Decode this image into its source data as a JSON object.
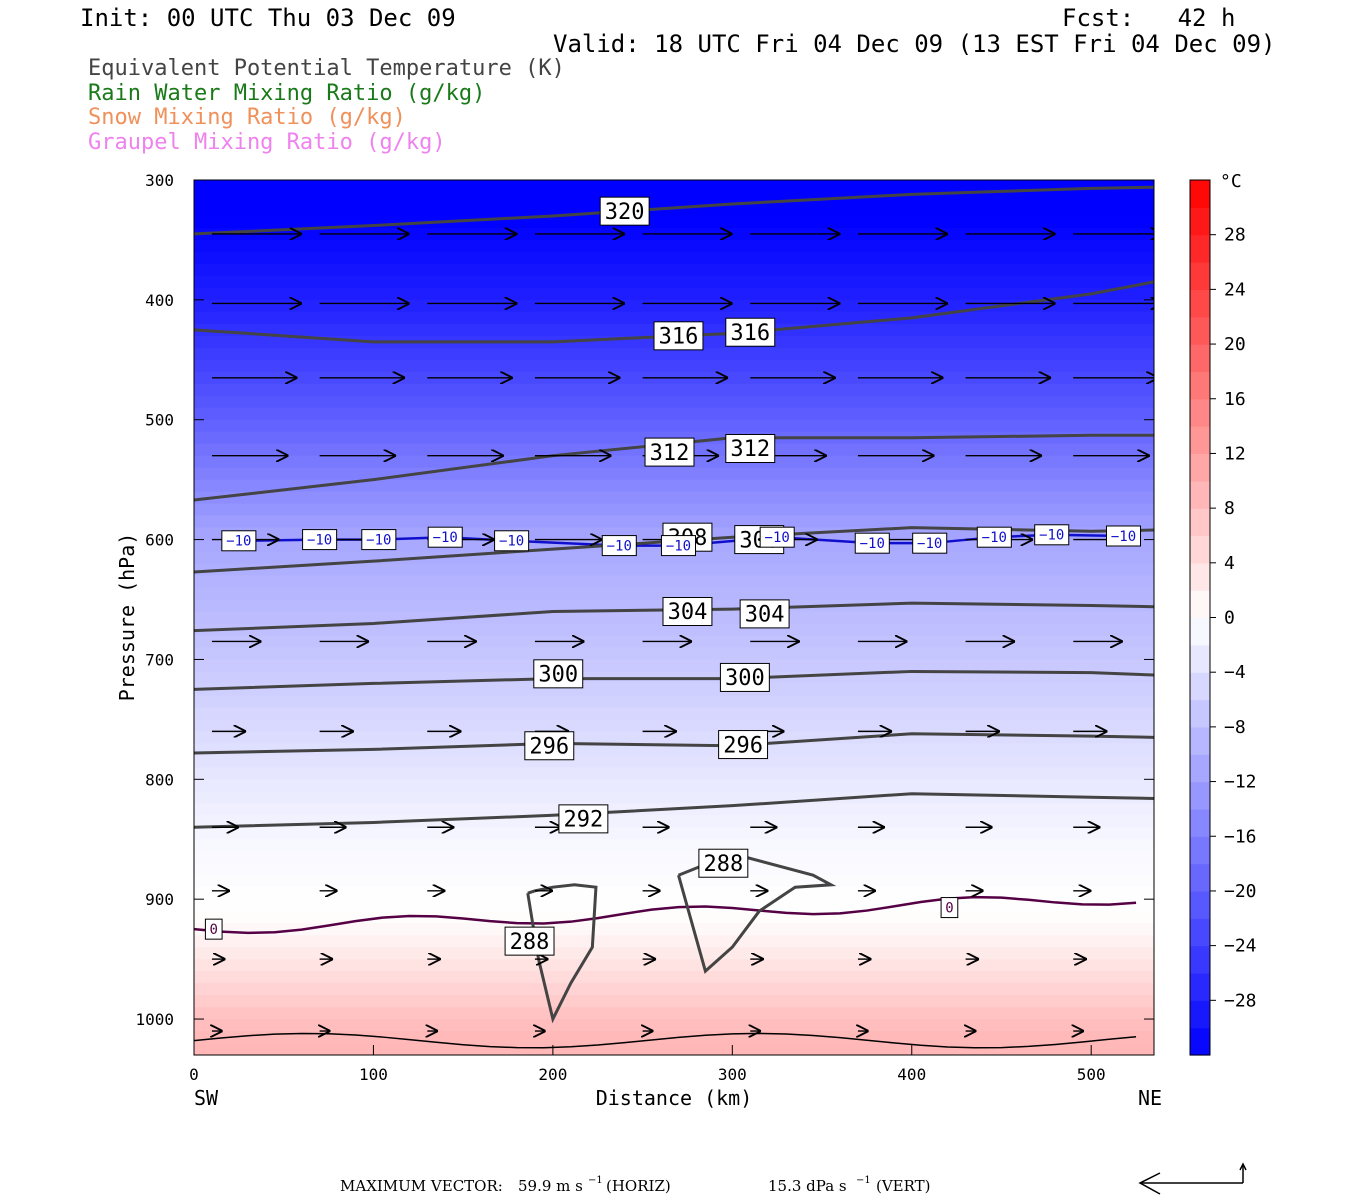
{
  "header": {
    "init": "Init: 00 UTC Thu 03 Dec 09",
    "fcst": "Fcst:   42 h",
    "valid": "Valid: 18 UTC Fri 04 Dec 09 (13 EST Fri 04 Dec 09)"
  },
  "legend": [
    {
      "label": "Equivalent Potential Temperature (K)",
      "color": "#444444"
    },
    {
      "label": "Rain Water Mixing Ratio (g/kg)",
      "color": "#1a7a1a"
    },
    {
      "label": "Snow Mixing Ratio (g/kg)",
      "color": "#f0905a"
    },
    {
      "label": "Graupel Mixing Ratio (g/kg)",
      "color": "#ee82ee"
    }
  ],
  "chart_data": {
    "type": "heatmap",
    "xlabel": "Distance (km)",
    "ylabel": "Pressure (hPa)",
    "xlim": [
      0,
      535
    ],
    "ylim": [
      1030,
      300
    ],
    "x_ticks": [
      0,
      100,
      200,
      300,
      400,
      500
    ],
    "y_ticks": [
      300,
      400,
      500,
      600,
      700,
      800,
      900,
      1000
    ],
    "x_left_label": "SW",
    "x_right_label": "NE",
    "colorbar": {
      "unit": "°C",
      "ticks": [
        "28",
        "24",
        "20",
        "16",
        "12",
        "8",
        "4",
        "0",
        "−4",
        "−8",
        "−12",
        "−16",
        "−20",
        "−24",
        "−28"
      ],
      "tick_values": [
        28,
        24,
        20,
        16,
        12,
        8,
        4,
        0,
        -4,
        -8,
        -12,
        -16,
        -20,
        -24,
        -28
      ],
      "range": [
        -32,
        32
      ],
      "cold_color": "#0000ff",
      "warm_color": "#ff0000"
    },
    "temperature_profile": {
      "pressure": [
        300,
        400,
        500,
        600,
        650,
        700,
        750,
        800,
        850,
        880,
        920,
        950,
        980,
        1000,
        1020
      ],
      "celsius": [
        -34,
        -28,
        -20,
        -11,
        -9,
        -7,
        -5,
        -3,
        -1,
        -0.5,
        0.5,
        3,
        6,
        8,
        9
      ]
    },
    "theta_e_contours": [
      {
        "value": 320,
        "x": [
          0,
          100,
          200,
          300,
          400,
          500,
          535
        ],
        "p": [
          345,
          338,
          330,
          320,
          312,
          307,
          306
        ],
        "labels": [
          {
            "text": "320",
            "x": 240,
            "p": 326
          }
        ]
      },
      {
        "value": 316,
        "x": [
          0,
          100,
          200,
          300,
          400,
          500,
          535
        ],
        "p": [
          425,
          435,
          435,
          428,
          415,
          395,
          385
        ],
        "labels": [
          {
            "text": "316",
            "x": 270,
            "p": 430
          },
          {
            "text": "316",
            "x": 310,
            "p": 427
          }
        ]
      },
      {
        "value": 312,
        "x": [
          0,
          100,
          200,
          300,
          400,
          500,
          535
        ],
        "p": [
          567,
          550,
          530,
          515,
          515,
          513,
          513
        ],
        "labels": [
          {
            "text": "312",
            "x": 265,
            "p": 527
          },
          {
            "text": "312",
            "x": 310,
            "p": 524
          }
        ]
      },
      {
        "value": 308,
        "x": [
          0,
          100,
          200,
          300,
          400,
          500,
          535
        ],
        "p": [
          627,
          618,
          608,
          598,
          590,
          593,
          592
        ],
        "labels": [
          {
            "text": "308",
            "x": 275,
            "p": 598
          },
          {
            "text": "308",
            "x": 315,
            "p": 600
          }
        ]
      },
      {
        "value": 304,
        "x": [
          0,
          100,
          200,
          300,
          400,
          500,
          535
        ],
        "p": [
          676,
          670,
          660,
          658,
          653,
          655,
          656
        ],
        "labels": [
          {
            "text": "304",
            "x": 275,
            "p": 660
          },
          {
            "text": "304",
            "x": 318,
            "p": 662
          }
        ]
      },
      {
        "value": 300,
        "x": [
          0,
          100,
          200,
          300,
          400,
          500,
          535
        ],
        "p": [
          725,
          720,
          716,
          716,
          710,
          711,
          713
        ],
        "labels": [
          {
            "text": "300",
            "x": 203,
            "p": 712
          },
          {
            "text": "300",
            "x": 307,
            "p": 715
          }
        ]
      },
      {
        "value": 296,
        "x": [
          0,
          100,
          200,
          300,
          400,
          500,
          535
        ],
        "p": [
          778,
          775,
          770,
          772,
          762,
          764,
          765
        ],
        "labels": [
          {
            "text": "296",
            "x": 198,
            "p": 772
          },
          {
            "text": "296",
            "x": 306,
            "p": 771
          }
        ]
      },
      {
        "value": 292,
        "x": [
          0,
          100,
          200,
          300,
          400,
          500,
          535
        ],
        "p": [
          840,
          836,
          830,
          822,
          812,
          815,
          816
        ],
        "labels": [
          {
            "text": "292",
            "x": 217,
            "p": 833
          }
        ]
      },
      {
        "value": 288,
        "x": [
          186,
          192,
          200,
          210,
          222,
          224,
          212,
          200,
          190,
          186
        ],
        "p": [
          895,
          950,
          1000,
          970,
          940,
          890,
          888,
          890,
          893,
          895
        ],
        "labels": [
          {
            "text": "288",
            "x": 187,
            "p": 935
          }
        ]
      },
      {
        "value": 288,
        "x": [
          270,
          285,
          300,
          315,
          335,
          355,
          345,
          300,
          270
        ],
        "p": [
          880,
          960,
          940,
          910,
          890,
          888,
          880,
          862,
          880
        ],
        "labels": [
          {
            "text": "288",
            "x": 295,
            "p": 870
          }
        ]
      }
    ],
    "isotherm_labels": [
      {
        "text": "−10",
        "x": 25,
        "p": 601
      },
      {
        "text": "−10",
        "x": 70,
        "p": 600
      },
      {
        "text": "−10",
        "x": 103,
        "p": 600
      },
      {
        "text": "−10",
        "x": 140,
        "p": 598
      },
      {
        "text": "−10",
        "x": 177,
        "p": 601
      },
      {
        "text": "−10",
        "x": 237,
        "p": 605
      },
      {
        "text": "−10",
        "x": 270,
        "p": 605
      },
      {
        "text": "−10",
        "x": 325,
        "p": 598
      },
      {
        "text": "−10",
        "x": 378,
        "p": 603
      },
      {
        "text": "−10",
        "x": 410,
        "p": 603
      },
      {
        "text": "−10",
        "x": 446,
        "p": 598
      },
      {
        "text": "−10",
        "x": 478,
        "p": 596
      },
      {
        "text": "−10",
        "x": 518,
        "p": 597
      }
    ],
    "freezing_labels": [
      {
        "text": "0",
        "x": 11,
        "p": 925
      },
      {
        "text": "0",
        "x": 421,
        "p": 907
      }
    ],
    "wind_rows": [
      {
        "p": 345,
        "u": 1.0,
        "w": 0.0
      },
      {
        "p": 403,
        "u": 1.0,
        "w": 0.0
      },
      {
        "p": 465,
        "u": 0.95,
        "w": 0.0
      },
      {
        "p": 530,
        "u": 0.85,
        "w": 0.0
      },
      {
        "p": 600,
        "u": 0.75,
        "w": 0.0
      },
      {
        "p": 685,
        "u": 0.55,
        "w": 0.0
      },
      {
        "p": 760,
        "u": 0.38,
        "w": 0.0
      },
      {
        "p": 840,
        "u": 0.3,
        "w": 0.0
      },
      {
        "p": 893,
        "u": 0.2,
        "w": 0.0
      },
      {
        "p": 950,
        "u": 0.15,
        "w": 0.0
      },
      {
        "p": 1010,
        "u": 0.12,
        "w": 0.0
      }
    ],
    "max_vector_text": "MAXIMUM VECTOR:",
    "max_horiz": "59.9 m s",
    "max_horiz_unit": "(HORIZ)",
    "max_vert": "15.3 dPa s",
    "max_vert_unit": "(VERT)"
  }
}
